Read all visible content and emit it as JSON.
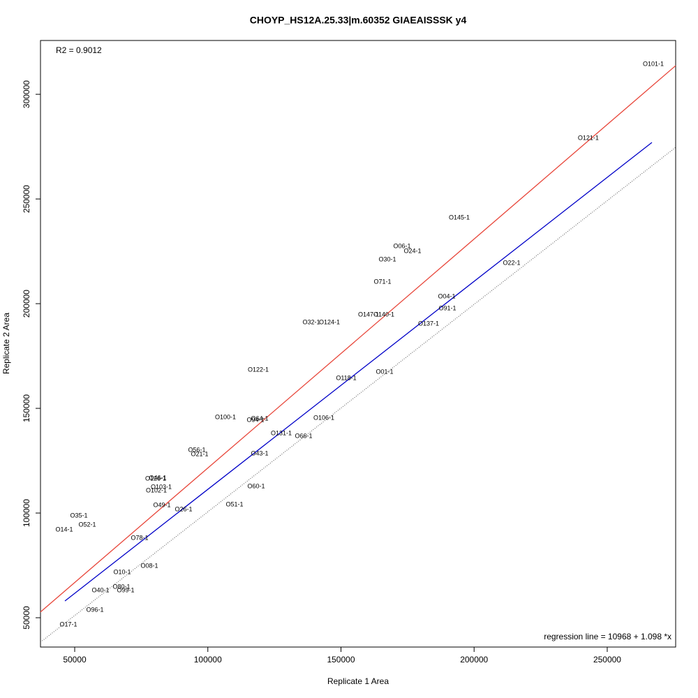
{
  "chart_data": {
    "type": "scatter",
    "title": "CHOYP_HS12A.25.33|m.60352 GIAEAISSSK y4",
    "x_label": "Replicate 1 Area",
    "y_label": "Replicate 2 Area",
    "annotations": [
      "R2 = 0.9012",
      "regression line = 10968 + 1.098 *x"
    ],
    "xlim": [
      37150,
      275700
    ],
    "ylim": [
      36000,
      325700
    ],
    "xticks": [
      50000,
      100000,
      150000,
      200000,
      250000
    ],
    "yticks": [
      50000,
      100000,
      150000,
      200000,
      250000,
      300000
    ],
    "labels": [
      "O101-1",
      "O121-1",
      "O145-1",
      "O06-1",
      "O24-1",
      "O30-1",
      "O22-1",
      "O71-1",
      "O04-1",
      "O91-1",
      "O147-1",
      "O140-1",
      "O32-1",
      "O124-1",
      "O137-1",
      "O122-1",
      "O01-1",
      "O118-1",
      "O100-1",
      "O64-1",
      "O94-1",
      "O106-1",
      "O131-1",
      "O66-1",
      "O56-1",
      "O21-1",
      "O43-1",
      "O46-1",
      "O126-1",
      "O103-1",
      "O102-1",
      "O60-1",
      "O49-1",
      "O51-1",
      "O26-1",
      "O35-1",
      "O52-1",
      "O14-1",
      "O78-1",
      "O08-1",
      "O10-1",
      "O80-1",
      "O40-1",
      "O99-1",
      "O96-1",
      "O17-1"
    ],
    "x": [
      267300,
      242900,
      194430,
      172940,
      176870,
      167430,
      214090,
      165600,
      189710,
      189970,
      160350,
      166120,
      138860,
      145680,
      182900,
      118940,
      166380,
      151970,
      106620,
      119460,
      117890,
      143580,
      127590,
      135980,
      95870,
      96920,
      119460,
      81190,
      80410,
      82500,
      80670,
      118150,
      82760,
      110030,
      90890,
      51570,
      54720,
      46070,
      74380,
      78050,
      67820,
      67560,
      59700,
      69130,
      57600,
      47640
    ],
    "y": [
      314333,
      279000,
      241000,
      227333,
      225000,
      221000,
      219333,
      210333,
      203333,
      197667,
      194667,
      194667,
      191000,
      191000,
      190333,
      168333,
      167333,
      164333,
      145667,
      145000,
      144333,
      145333,
      138000,
      136667,
      130000,
      128000,
      128333,
      116667,
      116333,
      112333,
      110667,
      112667,
      103667,
      104000,
      101667,
      98667,
      94333,
      92000,
      88000,
      74667,
      71667,
      64667,
      63000,
      63000,
      53667,
      46667
    ],
    "lines": [
      {
        "color": "#e8463a",
        "style": "solid",
        "x": [
          37150,
          275700
        ],
        "y": [
          52760,
          313680
        ]
      },
      {
        "color": "#0000c8",
        "style": "solid",
        "x": [
          46330,
          266780
        ],
        "y": [
          58000,
          277000
        ]
      },
      {
        "color": "#555555",
        "style": "dotted",
        "x": [
          37150,
          275700
        ],
        "y": [
          38330,
          274670
        ]
      }
    ]
  }
}
